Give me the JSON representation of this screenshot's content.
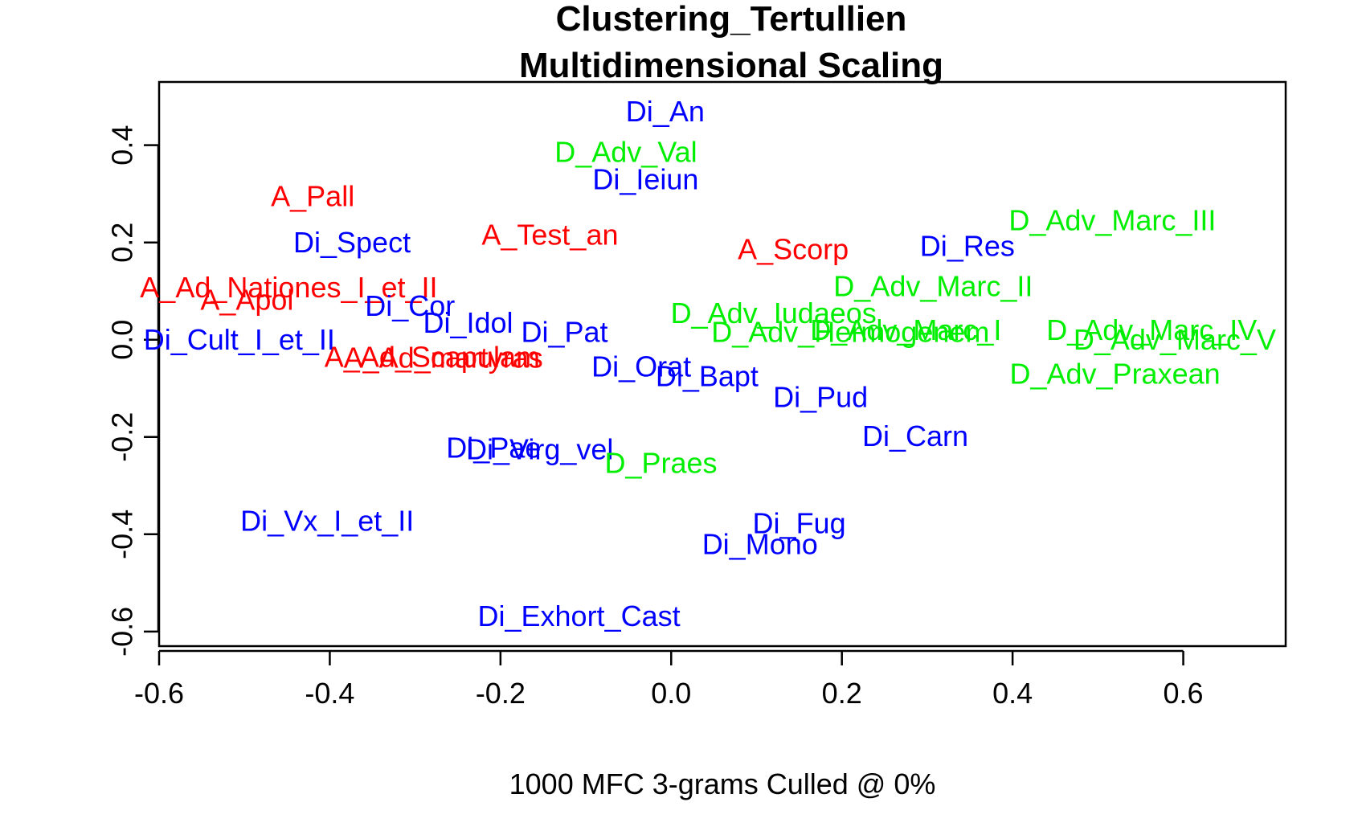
{
  "chart_data": {
    "type": "scatter",
    "title": "Clustering_Tertullien",
    "subtitle": "Multidimensional Scaling",
    "xlabel": "1000 MFC 3-grams Culled @ 0%",
    "ylabel": "",
    "xlim": [
      -0.6,
      0.72
    ],
    "ylim": [
      -0.63,
      0.53
    ],
    "x_ticks": [
      -0.6,
      -0.4,
      -0.2,
      0.0,
      0.2,
      0.4,
      0.6
    ],
    "x_tick_labels": [
      "-0.6",
      "-0.4",
      "-0.2",
      "0.0",
      "0.2",
      "0.4",
      "0.6"
    ],
    "y_ticks": [
      -0.6,
      -0.4,
      -0.2,
      0.0,
      0.2,
      0.4
    ],
    "y_tick_labels": [
      "-0.6",
      "-0.4",
      "-0.2",
      "0.0",
      "0.2",
      "0.4"
    ],
    "grid": false,
    "colors": {
      "A": "#ff0000",
      "Di": "#0000ff",
      "D": "#00ee00"
    },
    "points": [
      {
        "label": "Di_An",
        "x": -0.007,
        "y": 0.47,
        "group": "Di"
      },
      {
        "label": "D_Adv_Val",
        "x": -0.053,
        "y": 0.386,
        "group": "D"
      },
      {
        "label": "Di_Ieiun",
        "x": -0.03,
        "y": 0.33,
        "group": "Di"
      },
      {
        "label": "A_Pall",
        "x": -0.42,
        "y": 0.295,
        "group": "A"
      },
      {
        "label": "Di_Spect",
        "x": -0.374,
        "y": 0.2,
        "group": "Di"
      },
      {
        "label": "A_Test_an",
        "x": -0.142,
        "y": 0.216,
        "group": "A"
      },
      {
        "label": "A_Scorp",
        "x": 0.143,
        "y": 0.186,
        "group": "A"
      },
      {
        "label": "Di_Res",
        "x": 0.347,
        "y": 0.193,
        "group": "Di"
      },
      {
        "label": "D_Adv_Marc_III",
        "x": 0.517,
        "y": 0.246,
        "group": "D"
      },
      {
        "label": "D_Adv_Marc_II",
        "x": 0.307,
        "y": 0.11,
        "group": "D"
      },
      {
        "label": "A_Ad_Nationes_I_et_II",
        "x": -0.448,
        "y": 0.108,
        "group": "A"
      },
      {
        "label": "A_Apol",
        "x": -0.497,
        "y": 0.082,
        "group": "A"
      },
      {
        "label": "Di_Cor",
        "x": -0.306,
        "y": 0.07,
        "group": "Di"
      },
      {
        "label": "D_Adv_Iudaeos",
        "x": 0.12,
        "y": 0.055,
        "group": "D"
      },
      {
        "label": "Di_Idol",
        "x": -0.238,
        "y": 0.035,
        "group": "Di"
      },
      {
        "label": "Di_Pat",
        "x": -0.125,
        "y": 0.016,
        "group": "Di"
      },
      {
        "label": "D_Adv_Hermogenem",
        "x": 0.21,
        "y": 0.016,
        "group": "D"
      },
      {
        "label": "D_Adv_Marc_I",
        "x": 0.275,
        "y": 0.02,
        "group": "D"
      },
      {
        "label": "D_Adv_Marc_IV",
        "x": 0.563,
        "y": 0.02,
        "group": "D"
      },
      {
        "label": "D_Adv_Marc_V",
        "x": 0.59,
        "y": 0.0,
        "group": "D"
      },
      {
        "label": "Di_Cult_I_et_II",
        "x": -0.506,
        "y": 0.0,
        "group": "Di"
      },
      {
        "label": "A_Ad_Scapulam",
        "x": -0.28,
        "y": -0.035,
        "group": "A"
      },
      {
        "label": "A_Ad_martyras",
        "x": -0.267,
        "y": -0.037,
        "group": "A"
      },
      {
        "label": "Di_Orat",
        "x": -0.035,
        "y": -0.055,
        "group": "Di"
      },
      {
        "label": "Di_Bapt",
        "x": 0.042,
        "y": -0.075,
        "group": "Di"
      },
      {
        "label": "D_Adv_Praxean",
        "x": 0.52,
        "y": -0.07,
        "group": "D"
      },
      {
        "label": "Di_Pud",
        "x": 0.175,
        "y": -0.118,
        "group": "Di"
      },
      {
        "label": "Di_Carn",
        "x": 0.286,
        "y": -0.198,
        "group": "Di"
      },
      {
        "label": "Di_Pae",
        "x": -0.208,
        "y": -0.222,
        "group": "Di"
      },
      {
        "label": "Di_Virg_vel",
        "x": -0.154,
        "y": -0.225,
        "group": "Di"
      },
      {
        "label": "D_Praes",
        "x": -0.012,
        "y": -0.253,
        "group": "D"
      },
      {
        "label": "Di_Vx_I_et_II",
        "x": -0.403,
        "y": -0.372,
        "group": "Di"
      },
      {
        "label": "Di_Fug",
        "x": 0.15,
        "y": -0.377,
        "group": "Di"
      },
      {
        "label": "Di_Mono",
        "x": 0.104,
        "y": -0.42,
        "group": "Di"
      },
      {
        "label": "Di_Exhort_Cast",
        "x": -0.108,
        "y": -0.568,
        "group": "Di"
      }
    ]
  }
}
